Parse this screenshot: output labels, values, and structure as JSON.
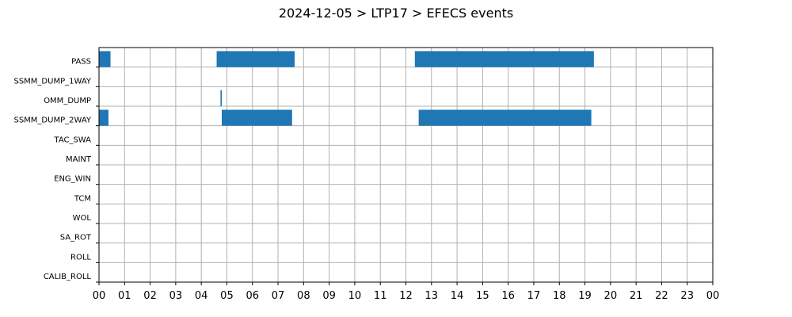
{
  "chart_data": {
    "type": "bar",
    "orientation": "horizontal-timeline",
    "title": "2024-12-05 > LTP17 > EFECS events",
    "xlabel": "",
    "ylabel": "",
    "grid": true,
    "xlim_hours": [
      0,
      24
    ],
    "xtick_values": [
      0,
      1,
      2,
      3,
      4,
      5,
      6,
      7,
      8,
      9,
      10,
      11,
      12,
      13,
      14,
      15,
      16,
      17,
      18,
      19,
      20,
      21,
      22,
      23,
      24
    ],
    "xtick_labels": [
      "00",
      "01",
      "02",
      "03",
      "04",
      "05",
      "06",
      "07",
      "08",
      "09",
      "10",
      "11",
      "12",
      "13",
      "14",
      "15",
      "16",
      "17",
      "18",
      "19",
      "20",
      "21",
      "22",
      "23",
      "00"
    ],
    "categories": [
      "PASS",
      "SSMM_DUMP_1WAY",
      "OMM_DUMP",
      "SSMM_DUMP_2WAY",
      "TAC_SWA",
      "MAINT",
      "ENG_WIN",
      "TCM",
      "WOL",
      "SA_ROT",
      "ROLL",
      "CALIB_ROLL"
    ],
    "bar_color": "#1f77b4",
    "events": [
      {
        "category": "PASS",
        "start_hour": 0.0,
        "end_hour": 0.45
      },
      {
        "category": "PASS",
        "start_hour": 4.6,
        "end_hour": 7.65
      },
      {
        "category": "PASS",
        "start_hour": 12.35,
        "end_hour": 19.35
      },
      {
        "category": "OMM_DUMP",
        "start_hour": 4.75,
        "end_hour": 4.8
      },
      {
        "category": "SSMM_DUMP_2WAY",
        "start_hour": 0.0,
        "end_hour": 0.37
      },
      {
        "category": "SSMM_DUMP_2WAY",
        "start_hour": 4.8,
        "end_hour": 7.55
      },
      {
        "category": "SSMM_DUMP_2WAY",
        "start_hour": 12.5,
        "end_hour": 19.25
      }
    ]
  }
}
